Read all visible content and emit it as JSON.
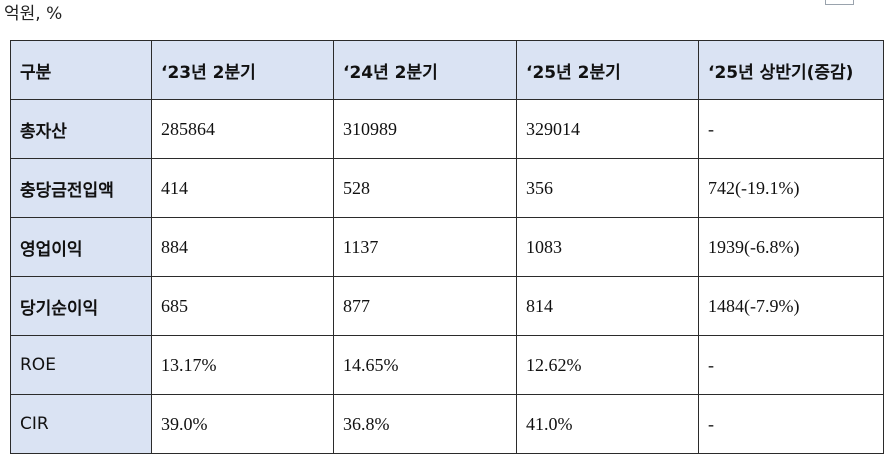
{
  "unit_caption": "억원, %",
  "table": {
    "headers": [
      "구분",
      "‘23년 2분기",
      "‘24년 2분기",
      "‘25년 2분기",
      "‘25년 상반기(증감)"
    ],
    "rows": [
      {
        "label": "총자산",
        "label_bold": true,
        "values": [
          "285864",
          "310989",
          "329014",
          "-"
        ]
      },
      {
        "label": "충당금전입액",
        "label_bold": true,
        "values": [
          "414",
          "528",
          "356",
          "742(-19.1%)"
        ]
      },
      {
        "label": "영업이익",
        "label_bold": true,
        "values": [
          "884",
          "1137",
          "1083",
          "1939(-6.8%)"
        ]
      },
      {
        "label": "당기순이익",
        "label_bold": true,
        "values": [
          "685",
          "877",
          "814",
          "1484(-7.9%)"
        ]
      },
      {
        "label": "ROE",
        "label_bold": false,
        "values": [
          "13.17%",
          "14.65%",
          "12.62%",
          "-"
        ]
      },
      {
        "label": "CIR",
        "label_bold": false,
        "values": [
          "39.0%",
          "36.8%",
          "41.0%",
          "-"
        ]
      }
    ]
  },
  "colors": {
    "header_bg": "#dae3f3",
    "border": "#2b2b2b",
    "cell_bg": "#ffffff"
  }
}
